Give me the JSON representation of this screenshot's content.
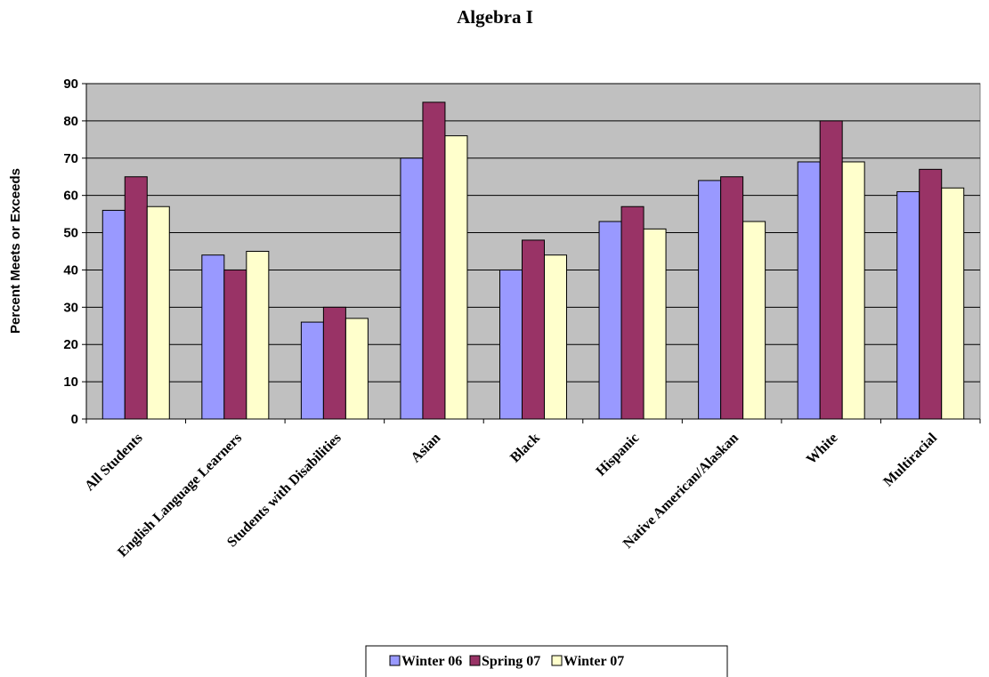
{
  "chart_data": {
    "type": "bar",
    "title": "Algebra I",
    "ylabel": "Percent Meets or Exceeds",
    "xlabel": "",
    "ylim": [
      0,
      90
    ],
    "yticks": [
      0,
      10,
      20,
      30,
      40,
      50,
      60,
      70,
      80,
      90
    ],
    "grid": true,
    "legend_position": "bottom",
    "categories": [
      "All Students",
      "English Language Learners",
      "Students with Disabilities",
      "Asian",
      "Black",
      "Hispanic",
      "Native American/Alaskan",
      "White",
      "Multiracial"
    ],
    "series": [
      {
        "name": "Winter 06",
        "color": "#9999FF",
        "values": [
          56,
          44,
          26,
          70,
          40,
          53,
          64,
          69,
          61
        ]
      },
      {
        "name": "Spring 07",
        "color": "#993366",
        "values": [
          65,
          40,
          30,
          85,
          48,
          57,
          65,
          80,
          67
        ]
      },
      {
        "name": "Winter 07",
        "color": "#FFFFCC",
        "values": [
          57,
          45,
          27,
          76,
          44,
          51,
          53,
          69,
          62
        ]
      }
    ],
    "plot_background": "#C0C0C0"
  }
}
